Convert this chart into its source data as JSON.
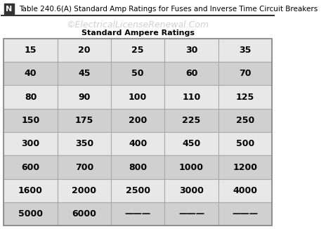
{
  "title": "Table 240.6(A) Standard Amp Ratings for Fuses and Inverse Time Circuit Breakers",
  "title_prefix": "N",
  "watermark": "©ElectricalLicenseRenewal.Com",
  "subtitle": "Standard Ampere Ratings",
  "table_data": [
    [
      "15",
      "20",
      "25",
      "30",
      "35"
    ],
    [
      "40",
      "45",
      "50",
      "60",
      "70"
    ],
    [
      "80",
      "90",
      "100",
      "110",
      "125"
    ],
    [
      "150",
      "175",
      "200",
      "225",
      "250"
    ],
    [
      "300",
      "350",
      "400",
      "450",
      "500"
    ],
    [
      "600",
      "700",
      "800",
      "1000",
      "1200"
    ],
    [
      "1600",
      "2000",
      "2500",
      "3000",
      "4000"
    ],
    [
      "5000",
      "6000",
      "———",
      "———",
      "———"
    ]
  ],
  "row_colors_even": "#e8e8e8",
  "row_colors_odd": "#d0d0d0",
  "border_color": "#aaaaaa",
  "fig_bg": "#ffffff",
  "cell_text_color": "#000000",
  "title_color": "#000000",
  "watermark_color": "#c8c8c8",
  "subtitle_color": "#000000",
  "n_box_bg": "#333333",
  "n_box_text": "#ffffff",
  "divider_color": "#333333"
}
